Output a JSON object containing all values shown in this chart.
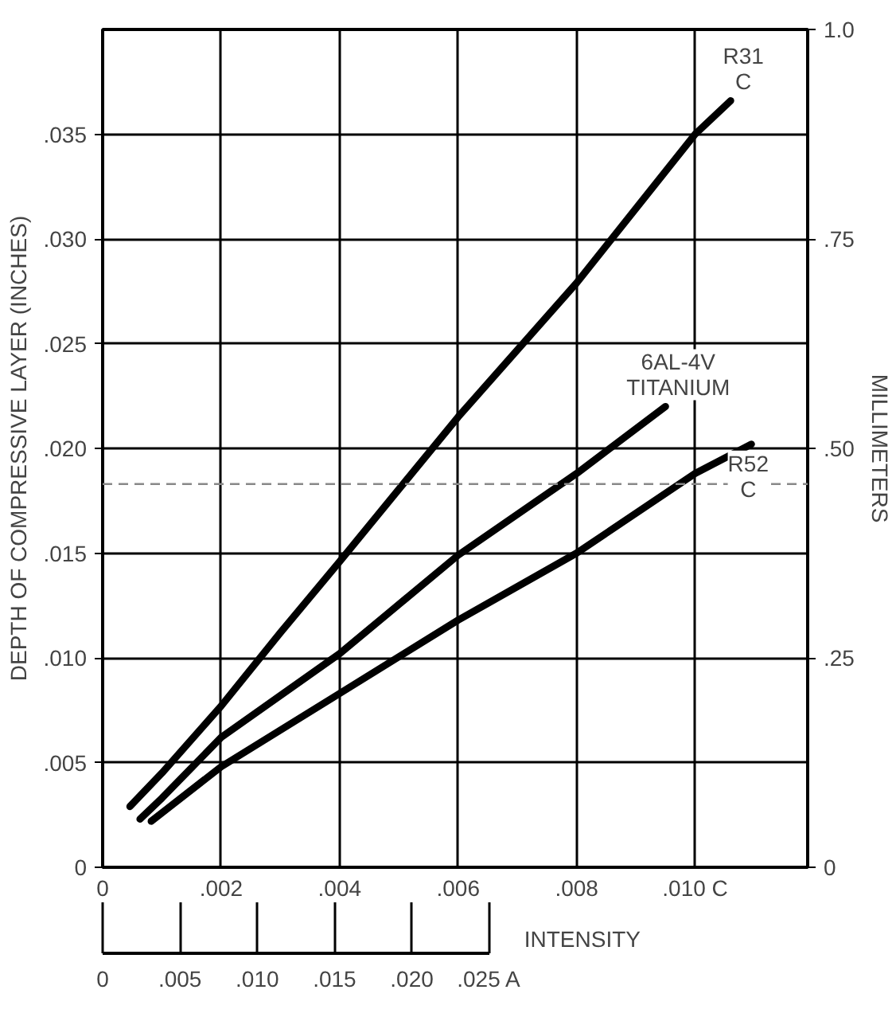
{
  "chart_data": {
    "type": "line",
    "xlabel": null,
    "ylabel": "DEPTH OF COMPRESSIVE LAYER (INCHES)",
    "y2label": "MILLIMETERS",
    "x2label": "INTENSITY",
    "xlim": [
      0,
      0.0119
    ],
    "xticks": [
      0,
      {
        "value": 0.002,
        "label": ".002"
      },
      {
        "value": 0.004,
        "label": ".004"
      },
      {
        "value": 0.006,
        "label": ".006"
      },
      {
        "value": 0.008,
        "label": ".008"
      },
      {
        "value": 0.01,
        "label": ".010 C"
      }
    ],
    "ylim": [
      0,
      0.04
    ],
    "yticks": [
      0,
      {
        "value": 0.005,
        "label": ".005"
      },
      {
        "value": 0.01,
        "label": ".010"
      },
      {
        "value": 0.015,
        "label": ".015"
      },
      {
        "value": 0.02,
        "label": ".020"
      },
      {
        "value": 0.025,
        "label": ".025"
      },
      {
        "value": 0.03,
        "label": ".030"
      },
      {
        "value": 0.035,
        "label": ".035"
      }
    ],
    "y2lim": [
      0,
      1.0
    ],
    "y2ticks": [
      0,
      {
        "value": 0.25,
        "label": ".25"
      },
      {
        "value": 0.5,
        "label": ".50"
      },
      {
        "value": 0.75,
        "label": ".75"
      },
      {
        "value": 1.0,
        "label": "1.0"
      }
    ],
    "x2lim": [
      0,
      0.0456
    ],
    "x2ticks": [
      0,
      {
        "value": 0.005,
        "label": ".005"
      },
      {
        "value": 0.01,
        "label": ".010"
      },
      {
        "value": 0.015,
        "label": ".015"
      },
      {
        "value": 0.02,
        "label": ".020"
      },
      {
        "value": 0.025,
        "label": ".025 A"
      }
    ],
    "grid": true,
    "line_style": "solid",
    "marker": "none",
    "ref_lines": [
      {
        "axis": "y",
        "value": 0.0183,
        "color": "#888888",
        "line_style": "dashed"
      }
    ],
    "series": [
      {
        "name": "R31\nC",
        "color": "#000000",
        "x": [
          0.00046,
          0.001,
          0.002,
          0.003,
          0.004,
          0.006,
          0.008,
          0.01,
          0.0106
        ],
        "values": [
          0.0029,
          0.0045,
          0.0077,
          0.0112,
          0.0146,
          0.0215,
          0.0279,
          0.035,
          0.0366
        ]
      },
      {
        "name": "6AL-4V\nTITANIUM",
        "color": "#000000",
        "x": [
          0.00063,
          0.001,
          0.002,
          0.004,
          0.006,
          0.008,
          0.0095
        ],
        "values": [
          0.0023,
          0.0033,
          0.0062,
          0.0102,
          0.0149,
          0.0188,
          0.022
        ]
      },
      {
        "name": "R52\nC",
        "color": "#000000",
        "x": [
          0.00082,
          0.002,
          0.004,
          0.006,
          0.008,
          0.01,
          0.01095
        ],
        "values": [
          0.0022,
          0.0048,
          0.0083,
          0.0118,
          0.015,
          0.0188,
          0.0202
        ]
      }
    ]
  }
}
